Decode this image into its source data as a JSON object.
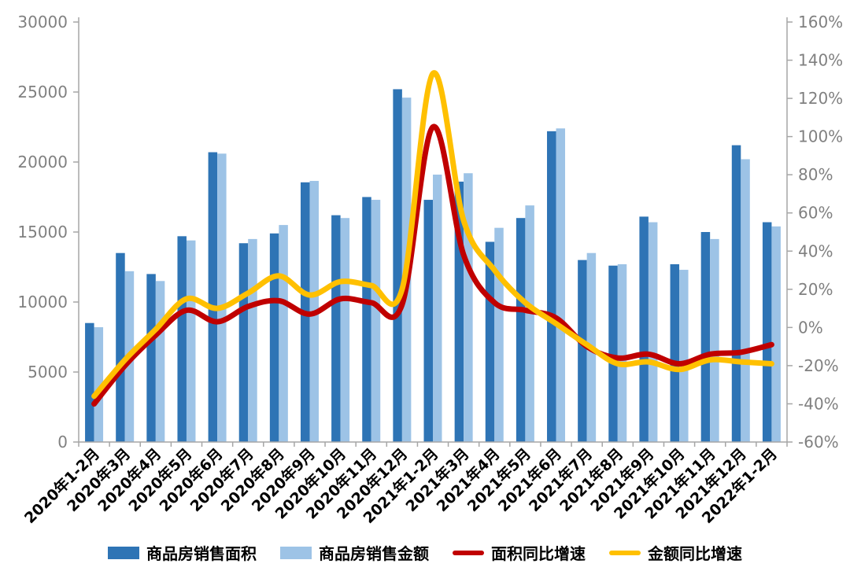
{
  "chart_data": {
    "type": "bar",
    "subtype": "bar-line-combo",
    "categories": [
      "2020年1-2月",
      "2020年3月",
      "2020年4月",
      "2020年5月",
      "2020年6月",
      "2020年7月",
      "2020年8月",
      "2020年9月",
      "2020年10月",
      "2020年11月",
      "2020年12月",
      "2021年1-2月",
      "2021年3月",
      "2021年4月",
      "2021年5月",
      "2021年6月",
      "2021年7月",
      "2021年8月",
      "2021年9月",
      "2021年10月",
      "2021年11月",
      "2021年12月",
      "2022年1-2月"
    ],
    "series": [
      {
        "name": "商品房销售面积",
        "type": "bar",
        "axis": "left",
        "color": "#2E74B5",
        "values": [
          8500,
          13500,
          12000,
          14700,
          20700,
          14200,
          14900,
          18550,
          16200,
          17500,
          25200,
          17300,
          18600,
          14300,
          16000,
          22200,
          13000,
          12600,
          16100,
          12700,
          15000,
          21200,
          15700
        ]
      },
      {
        "name": "商品房销售金额",
        "type": "bar",
        "axis": "left",
        "color": "#9DC3E6",
        "values": [
          8200,
          12200,
          11500,
          14400,
          20600,
          14500,
          15500,
          18650,
          16000,
          17300,
          24600,
          19100,
          19200,
          15300,
          16900,
          22400,
          13500,
          12700,
          15700,
          12300,
          14500,
          20200,
          15400
        ]
      },
      {
        "name": "面积同比增速",
        "type": "line",
        "axis": "right",
        "color": "#C00000",
        "values": [
          -40,
          -20,
          -4,
          9,
          3,
          11,
          14,
          7,
          15,
          13,
          12,
          105,
          38,
          13,
          9,
          5,
          -10,
          -16,
          -14,
          -19,
          -14,
          -13,
          -9
        ]
      },
      {
        "name": "金额同比增速",
        "type": "line",
        "axis": "right",
        "color": "#FFC000",
        "values": [
          -36,
          -17,
          -1,
          15,
          10,
          18,
          27,
          17,
          24,
          22,
          20,
          133,
          56,
          30,
          13,
          2,
          -9,
          -19,
          -18,
          -22,
          -17,
          -18,
          -19
        ]
      }
    ],
    "left_axis": {
      "min": 0,
      "max": 30000,
      "step": 5000,
      "ticks": [
        "0",
        "5000",
        "10000",
        "15000",
        "20000",
        "25000",
        "30000"
      ]
    },
    "right_axis": {
      "min": -60,
      "max": 160,
      "step": 20,
      "ticks": [
        "-60%",
        "-40%",
        "-20%",
        "0%",
        "20%",
        "40%",
        "60%",
        "80%",
        "100%",
        "120%",
        "140%",
        "160%"
      ]
    },
    "grid": false,
    "legend_position": "bottom",
    "x_label_rotation_deg": -45
  },
  "colors": {
    "axis_line": "#A6A6A6",
    "axis_tick_text": "#808080",
    "x_label_text": "#000000",
    "background": "#FFFFFF"
  }
}
